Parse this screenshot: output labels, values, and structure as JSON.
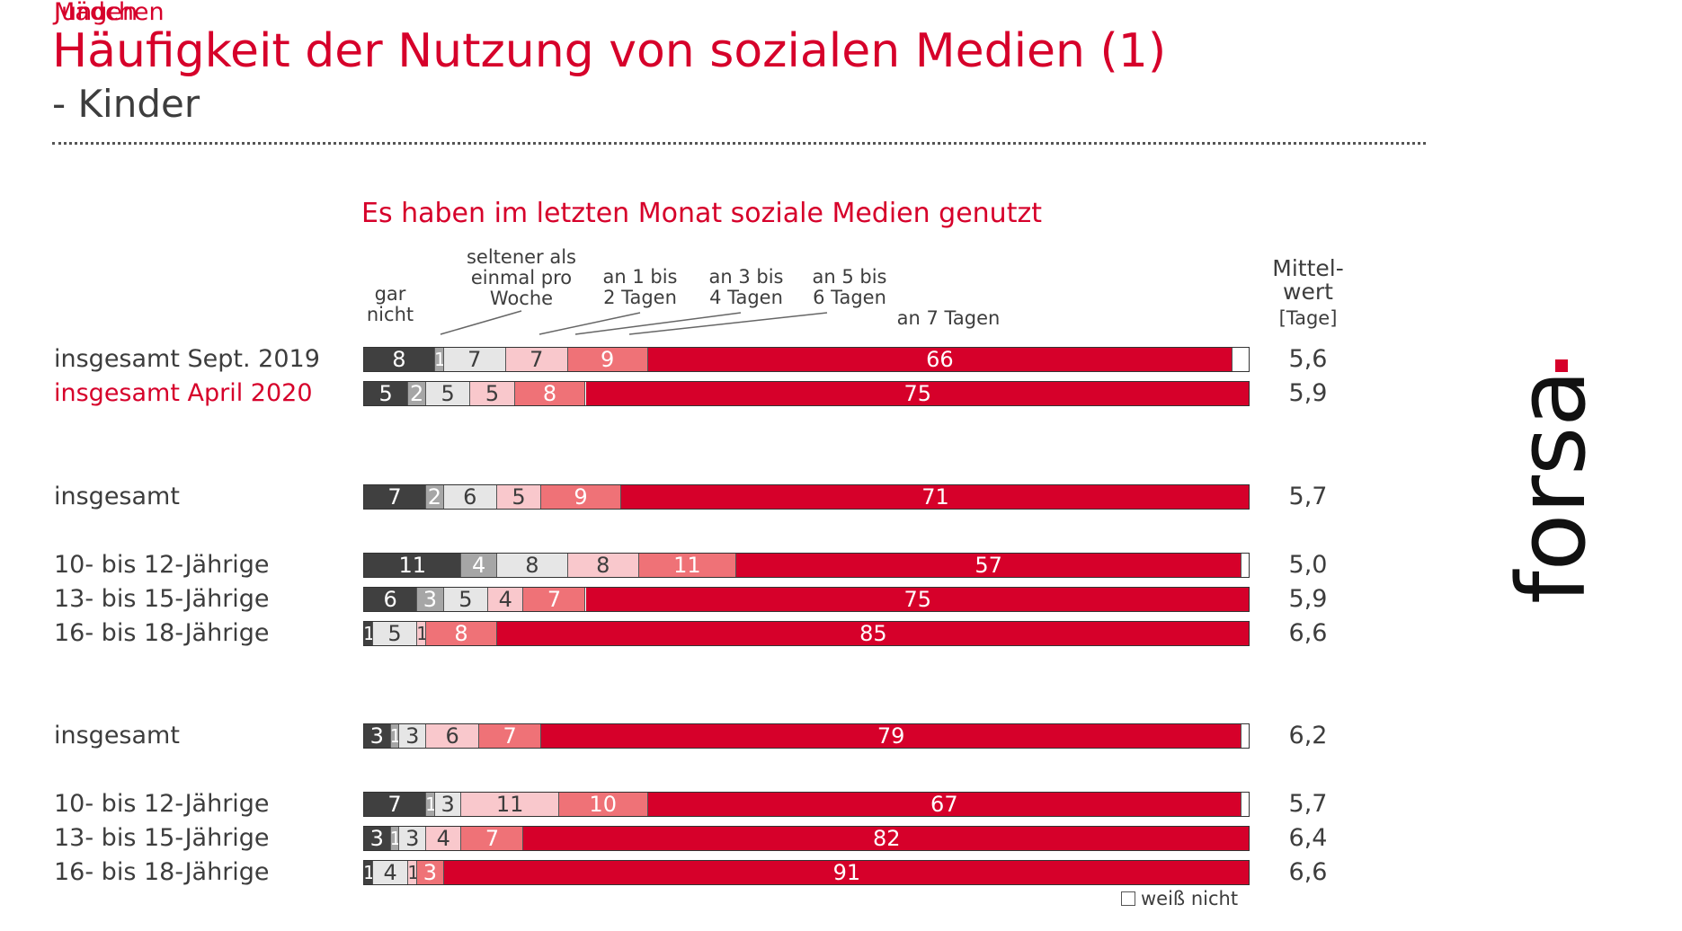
{
  "header": {
    "title": "Häufigkeit der Nutzung von sozialen Medien (1)",
    "subtitle": "- Kinder"
  },
  "legend": {
    "dont_know": "weiß nicht"
  },
  "logo": {
    "text": "forsa",
    "dot_color": "#d6002a"
  },
  "chart_data": {
    "type": "bar",
    "orientation": "horizontal",
    "stacked": true,
    "normalized": true,
    "title": "Es haben im letzten Monat soziale Medien genutzt",
    "mean_header": "Mittel-wert",
    "mean_header_lines": [
      "Mittel-",
      "wert"
    ],
    "mean_unit": "[Tage]",
    "categories": [
      {
        "name": "gar nicht",
        "lines": [
          "gar",
          "nicht"
        ],
        "color": "#404040",
        "text_color": "#ffffff"
      },
      {
        "name": "seltener als einmal pro Woche",
        "lines": [
          "seltener als",
          "einmal pro",
          "Woche"
        ],
        "color": "#a6a6a6",
        "text_color": "#ffffff"
      },
      {
        "name": "an 1 bis 2 Tagen",
        "lines": [
          "an 1 bis",
          "2 Tagen"
        ],
        "color": "#e6e6e6",
        "text_color": "#3d3d3d"
      },
      {
        "name": "an 3 bis 4 Tagen",
        "lines": [
          "an 3 bis",
          "4 Tagen"
        ],
        "color": "#f9c8cc",
        "text_color": "#3d3d3d"
      },
      {
        "name": "an 5 bis 6 Tagen",
        "lines": [
          "an 5 bis",
          "6 Tagen"
        ],
        "color": "#ef7277",
        "text_color": "#ffffff"
      },
      {
        "name": "an 7 Tagen",
        "lines": [
          "an 7 Tagen"
        ],
        "color": "#d6002a",
        "text_color": "#ffffff"
      },
      {
        "name": "weiß nicht",
        "lines": [
          "weiß nicht"
        ],
        "color": "#ffffff",
        "text_color": "#3d3d3d"
      }
    ],
    "groups": [
      {
        "header": "",
        "rows": [
          {
            "label": "insgesamt Sept. 2019",
            "highlight": false,
            "values": [
              8,
              1,
              7,
              7,
              9,
              66,
              2
            ],
            "mean": "5,6"
          },
          {
            "label": "insgesamt April 2020",
            "highlight": true,
            "values": [
              5,
              2,
              5,
              5,
              8,
              75,
              0
            ],
            "mean": "5,9"
          }
        ]
      },
      {
        "header": "Jungen",
        "rows": [
          {
            "label": "insgesamt",
            "highlight": false,
            "values": [
              7,
              2,
              6,
              5,
              9,
              71,
              0
            ],
            "mean": "5,7"
          }
        ]
      },
      {
        "header": "",
        "rows": [
          {
            "label": "10- bis 12-Jährige",
            "highlight": false,
            "values": [
              11,
              4,
              8,
              8,
              11,
              57,
              1
            ],
            "mean": "5,0"
          },
          {
            "label": "13- bis 15-Jährige",
            "highlight": false,
            "values": [
              6,
              3,
              5,
              4,
              7,
              75,
              0
            ],
            "mean": "5,9"
          },
          {
            "label": "16- bis 18-Jährige",
            "highlight": false,
            "values": [
              1,
              0,
              5,
              1,
              8,
              85,
              0
            ],
            "mean": "6,6"
          }
        ]
      },
      {
        "header": "Mädchen",
        "rows": [
          {
            "label": "insgesamt",
            "highlight": false,
            "values": [
              3,
              1,
              3,
              6,
              7,
              79,
              1
            ],
            "mean": "6,2"
          }
        ]
      },
      {
        "header": "",
        "rows": [
          {
            "label": "10- bis 12-Jährige",
            "highlight": false,
            "values": [
              7,
              1,
              3,
              11,
              10,
              67,
              1
            ],
            "mean": "5,7"
          },
          {
            "label": "13- bis 15-Jährige",
            "highlight": false,
            "values": [
              3,
              1,
              3,
              4,
              7,
              82,
              0
            ],
            "mean": "6,4"
          },
          {
            "label": "16- bis 18-Jährige",
            "highlight": false,
            "values": [
              1,
              0,
              4,
              1,
              3,
              91,
              0
            ],
            "mean": "6,6"
          }
        ]
      }
    ]
  }
}
